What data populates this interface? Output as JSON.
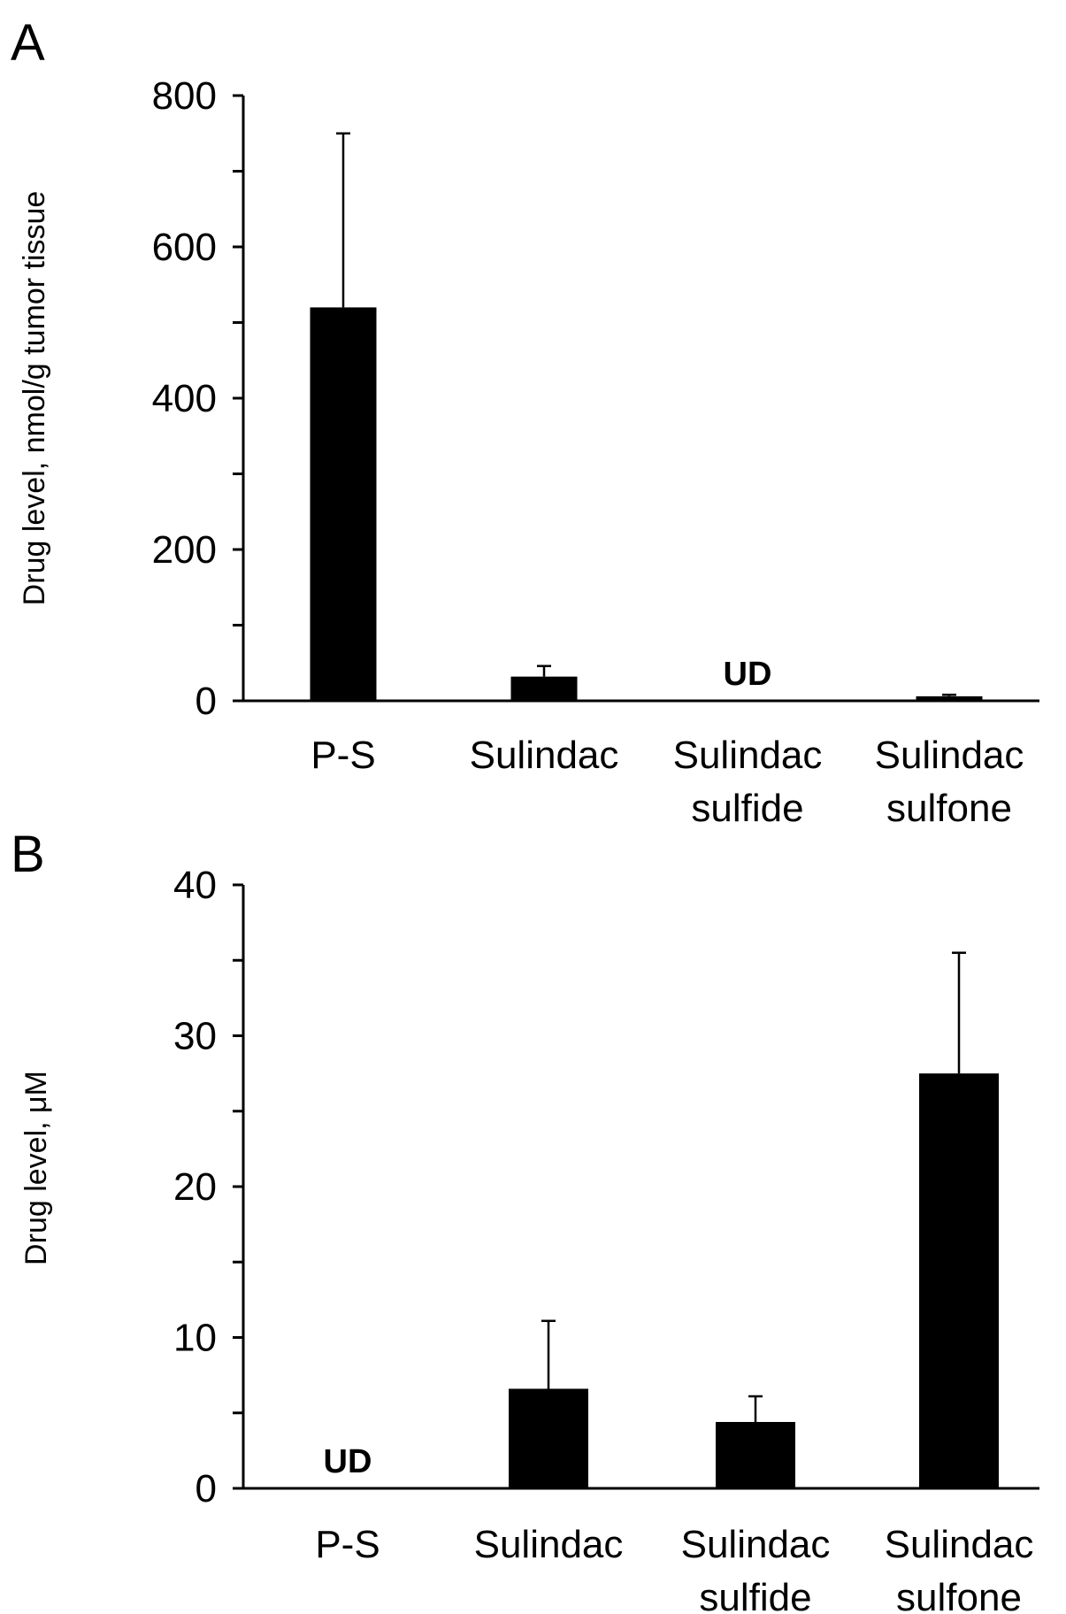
{
  "chart_data": [
    {
      "type": "bar",
      "panel_label": "A",
      "title": "",
      "xlabel": "",
      "ylabel": "Drug level, nmol/g tumor tissue",
      "ylim": [
        0,
        800
      ],
      "yticks": [
        0,
        200,
        400,
        600,
        800
      ],
      "minor_ticks": [
        100,
        300,
        500,
        700
      ],
      "categories": [
        [
          "P-S"
        ],
        [
          "Sulindac"
        ],
        [
          "Sulindac",
          "sulfide"
        ],
        [
          "Sulindac",
          "sulfone"
        ]
      ],
      "values": [
        520,
        32,
        0,
        6
      ],
      "errors": [
        230,
        14,
        0,
        2
      ],
      "annotations": [
        "",
        "",
        "UD",
        ""
      ],
      "grid": false
    },
    {
      "type": "bar",
      "panel_label": "B",
      "title": "",
      "xlabel": "",
      "ylabel": "Drug level, μM",
      "ylim": [
        0,
        40
      ],
      "yticks": [
        0,
        10,
        20,
        30,
        40
      ],
      "minor_ticks": [
        5,
        15,
        25,
        35
      ],
      "categories": [
        [
          "P-S"
        ],
        [
          "Sulindac"
        ],
        [
          "Sulindac",
          "sulfide"
        ],
        [
          "Sulindac",
          "sulfone"
        ]
      ],
      "values": [
        0,
        6.6,
        4.4,
        27.5
      ],
      "errors": [
        0,
        4.5,
        1.7,
        8
      ],
      "annotations": [
        "UD",
        "",
        "",
        ""
      ],
      "grid": false
    }
  ]
}
